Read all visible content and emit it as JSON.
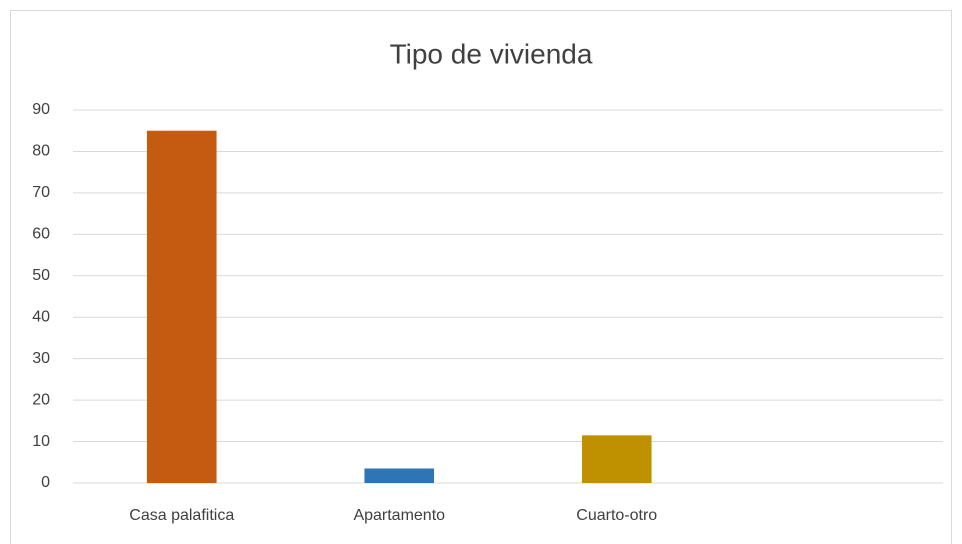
{
  "chart_data": {
    "type": "bar",
    "title": "Tipo de vivienda",
    "categories": [
      "Casa palafitica",
      "Apartamento",
      "Cuarto-otro",
      null
    ],
    "values": [
      85,
      3.5,
      11.5,
      null
    ],
    "colors": [
      "#c55a11",
      "#2e75b6",
      "#bf9000",
      null
    ],
    "ylim": [
      0,
      90
    ],
    "yticks": [
      0,
      10,
      20,
      30,
      40,
      50,
      60,
      70,
      80,
      90
    ],
    "grid": true
  }
}
